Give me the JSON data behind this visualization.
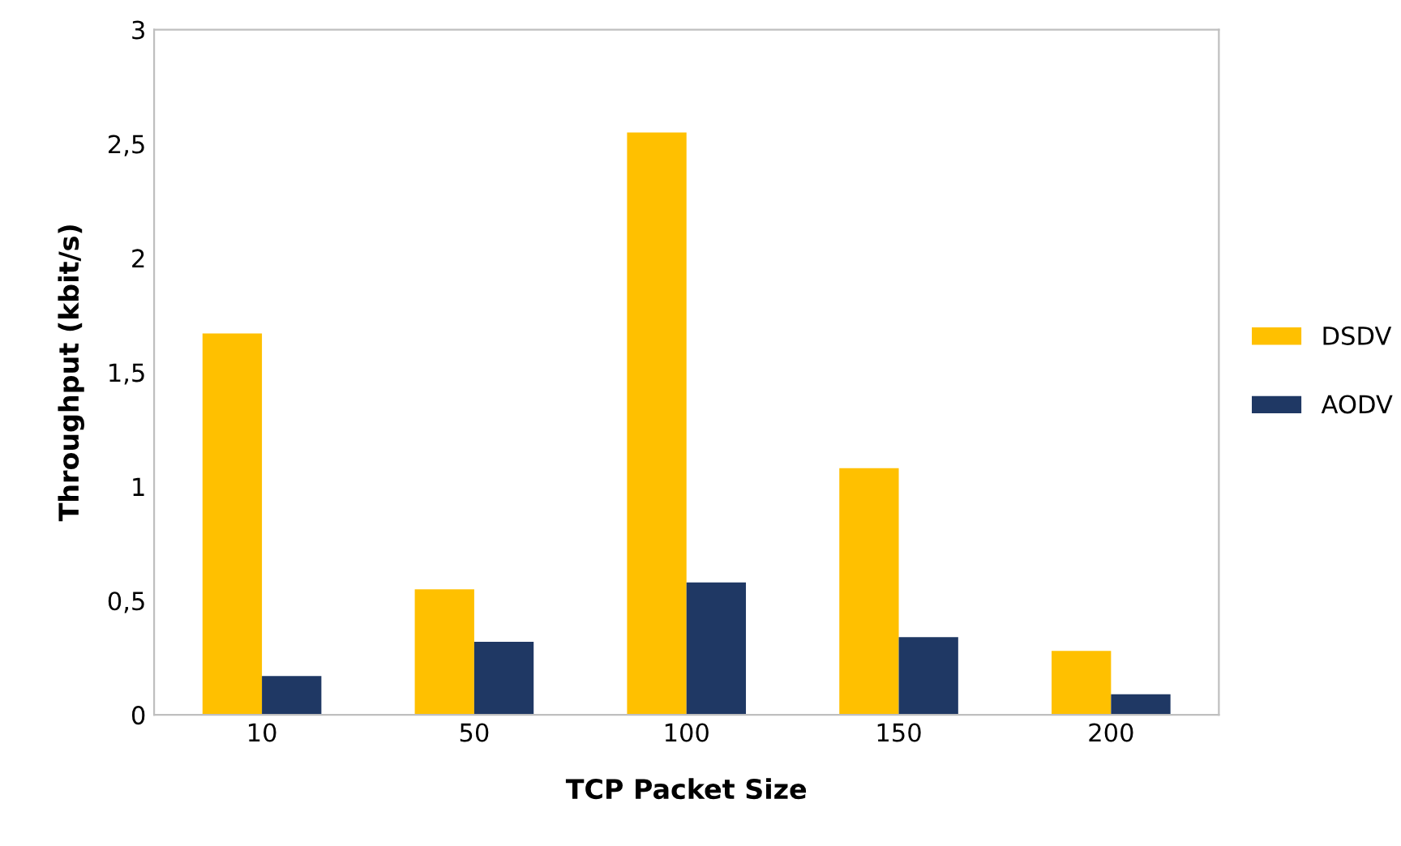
{
  "chart_data": {
    "type": "bar",
    "xlabel": "TCP Packet Size",
    "ylabel": "Throughput (kbit/s)",
    "categories": [
      "10",
      "50",
      "100",
      "150",
      "200"
    ],
    "series": [
      {
        "name": "DSDV",
        "color": "#ffc000",
        "values": [
          1.67,
          0.55,
          2.55,
          1.08,
          0.28
        ]
      },
      {
        "name": "AODV",
        "color": "#1f3864",
        "values": [
          0.17,
          0.32,
          0.58,
          0.34,
          0.09
        ]
      }
    ],
    "ylim": [
      0,
      3
    ],
    "yticks": [
      0,
      {
        "value": 0.5,
        "label": "0,5"
      },
      1,
      {
        "value": 1.5,
        "label": "1,5"
      },
      2,
      {
        "value": 2.5,
        "label": "2,5"
      },
      3
    ],
    "grid": false,
    "legend": "right"
  }
}
